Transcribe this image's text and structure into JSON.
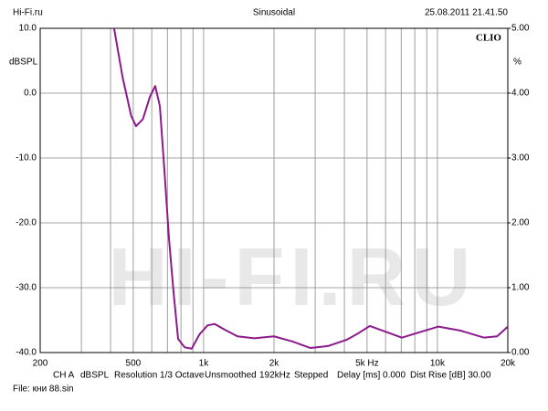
{
  "header": {
    "left": "Hi-Fi.ru",
    "center": "Sinusoidal",
    "right": "25.08.2011 21.41.50"
  },
  "chart_data": {
    "type": "line",
    "brand": "CLIO",
    "watermark": "HI-FI.RU",
    "ylabel": "dBSPL",
    "y2label": "%",
    "xscale": "log",
    "xlim": [
      200,
      20000
    ],
    "xticks": [
      200,
      500,
      {
        "value": 1000,
        "label": "1k"
      },
      {
        "value": 2000,
        "label": "2k"
      },
      {
        "value": 5000,
        "label": "5k Hz"
      },
      {
        "value": 10000,
        "label": "10k"
      },
      {
        "value": 20000,
        "label": "20k"
      }
    ],
    "xgrid": [
      300,
      400,
      600,
      700,
      800,
      900,
      3000,
      4000,
      6000,
      7000,
      8000,
      9000
    ],
    "ylim": [
      -40,
      10
    ],
    "yticks": [
      {
        "value": 10,
        "label": "10.0"
      },
      {
        "value": 0,
        "label": "0.0"
      },
      {
        "value": -10,
        "label": "-10.0"
      },
      {
        "value": -20,
        "label": "-20.0"
      },
      {
        "value": -30,
        "label": "-30.0"
      },
      {
        "value": -40,
        "label": "-40.0"
      }
    ],
    "y2lim": [
      0,
      5
    ],
    "y2ticks": [
      {
        "value": 5,
        "label": "5.00"
      },
      {
        "value": 4,
        "label": "4.00"
      },
      {
        "value": 3,
        "label": "3.00"
      },
      {
        "value": 2,
        "label": "2.00"
      },
      {
        "value": 1,
        "label": "1.00"
      },
      {
        "value": 0,
        "label": "0.00"
      }
    ],
    "grid": true,
    "series": [
      {
        "color": "#8b1a8b",
        "x": [
          414,
          450,
          490,
          514,
          550,
          590,
          621,
          650,
          680,
          711,
          745,
          778,
          830,
          889,
          960,
          1040,
          1115,
          1250,
          1395,
          1650,
          2000,
          2400,
          2866,
          3400,
          4108,
          4600,
          5140,
          5800,
          7045,
          8500,
          10100,
          12500,
          15830,
          18000,
          20000
        ],
        "values": [
          10,
          2.5,
          -3.5,
          -5.1,
          -4,
          -0.5,
          1.1,
          -2,
          -12,
          -22.4,
          -31,
          -37.9,
          -39.2,
          -39.4,
          -37.2,
          -35.8,
          -35.6,
          -36.6,
          -37.5,
          -37.8,
          -37.5,
          -38.3,
          -39.3,
          -39,
          -38,
          -37,
          -35.9,
          -36.6,
          -37.7,
          -36.8,
          -36,
          -36.6,
          -37.7,
          -37.5,
          -36
        ]
      }
    ]
  },
  "footer": [
    "CH A",
    "dBSPL",
    "Resolution 1/3 Octave",
    "Unsmoothed",
    "192kHz",
    "Stepped",
    "Delay [ms] 0.000",
    "Dist Rise [dB] 30.00"
  ],
  "file": "File: кни 88.sin"
}
